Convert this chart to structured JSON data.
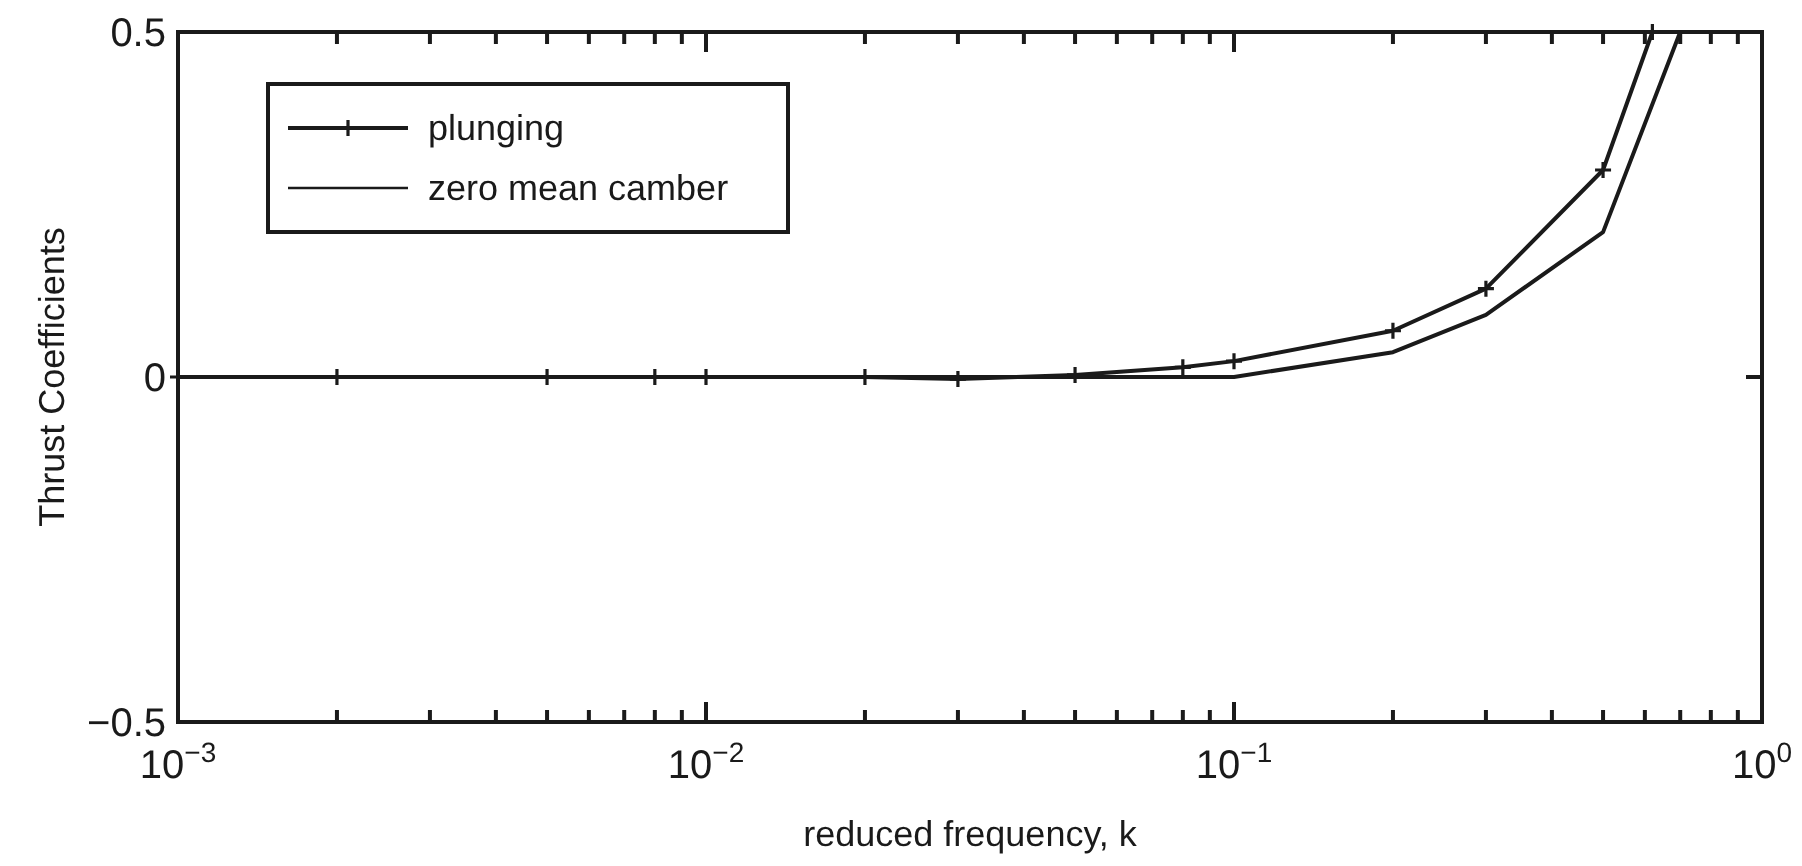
{
  "chart_data": {
    "type": "line",
    "xlabel": "reduced frequency, k",
    "ylabel": "Thrust Coefficients",
    "log": "x",
    "xlim": [
      0.001,
      1
    ],
    "ylim": [
      -0.5,
      0.5
    ],
    "xticks": [
      {
        "value": 0.001,
        "label": "10$^{−3}$"
      },
      {
        "value": 0.002,
        "label": null
      },
      {
        "value": 0.003,
        "label": null
      },
      {
        "value": 0.004,
        "label": null
      },
      {
        "value": 0.005,
        "label": null
      },
      {
        "value": 0.006,
        "label": null
      },
      {
        "value": 0.007,
        "label": null
      },
      {
        "value": 0.008,
        "label": null
      },
      {
        "value": 0.009,
        "label": null
      },
      {
        "value": 0.01,
        "label": "10$^{−2}$"
      },
      {
        "value": 0.02,
        "label": null
      },
      {
        "value": 0.03,
        "label": null
      },
      {
        "value": 0.04,
        "label": null
      },
      {
        "value": 0.05,
        "label": null
      },
      {
        "value": 0.06,
        "label": null
      },
      {
        "value": 0.07,
        "label": null
      },
      {
        "value": 0.08,
        "label": null
      },
      {
        "value": 0.09,
        "label": null
      },
      {
        "value": 0.1,
        "label": "10$^{−1}$"
      },
      {
        "value": 0.2,
        "label": null
      },
      {
        "value": 0.3,
        "label": null
      },
      {
        "value": 0.4,
        "label": null
      },
      {
        "value": 0.5,
        "label": null
      },
      {
        "value": 0.6,
        "label": null
      },
      {
        "value": 0.7,
        "label": null
      },
      {
        "value": 0.8,
        "label": null
      },
      {
        "value": 0.9,
        "label": null
      },
      {
        "value": 1,
        "label": "10$^{0}$"
      }
    ],
    "yticks": [
      {
        "value": -0.5,
        "label": "−0.5"
      },
      0,
      0.5
    ],
    "grid": false,
    "legend": "top left",
    "series": [
      {
        "name": "plunging",
        "color": "#1a1a1a",
        "marker": "cross",
        "x": [
          0.001,
          0.002,
          0.005,
          0.008,
          0.01,
          0.02,
          0.03,
          0.05,
          0.08,
          0.1,
          0.2,
          0.3,
          0.5,
          0.62
        ],
        "values": [
          0,
          0,
          0,
          0,
          0,
          0,
          -0.003,
          0.003,
          0.014,
          0.023,
          0.067,
          0.128,
          0.3,
          0.5
        ]
      },
      {
        "name": "zero mean camber",
        "color": "#1a1a1a",
        "marker": "none",
        "x": [
          0.001,
          0.01,
          0.02,
          0.05,
          0.1,
          0.2,
          0.3,
          0.5,
          0.7
        ],
        "values": [
          0,
          0,
          0,
          0,
          0,
          0.036,
          0.09,
          0.21,
          0.5
        ]
      }
    ]
  }
}
